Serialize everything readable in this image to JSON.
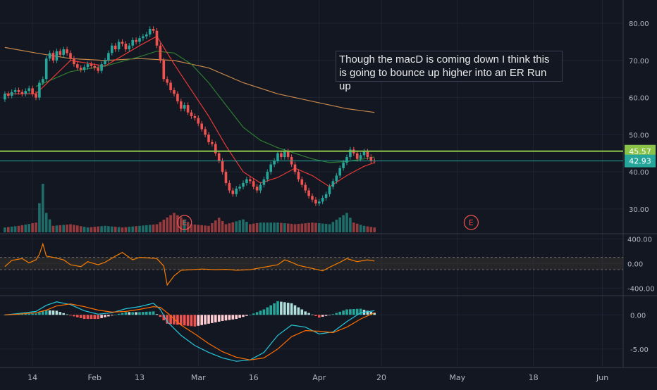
{
  "note": "Though the macD is coming down I think this is going to bounce up higher into an ER Run up",
  "colors": {
    "background": "#131722",
    "grid": "#1f2433",
    "up": "#26a69a",
    "down": "#ef5350",
    "ema_fast": "#e53935",
    "ema_mid": "#2e7d32",
    "sma_slow": "#c8884a",
    "hline": "#8bc34a",
    "price_line": "#26a69a",
    "cci": "#f57c00",
    "macd": "#26c6da",
    "signal": "#ff6d00",
    "axis_text": "#b2b5be"
  },
  "earnings_marker": "E",
  "chart_data": [
    {
      "type": "candlestick",
      "panel": "price",
      "ylim": [
        26,
        84
      ],
      "y_ticks": [
        "80.00",
        "70.00",
        "60.00",
        "50.00",
        "40.00",
        "30.00"
      ],
      "y_tick_values": [
        80,
        70,
        60,
        50,
        40,
        30
      ],
      "x_ticks": [
        "14",
        "Feb",
        "13",
        "Mar",
        "16",
        "Apr",
        "20",
        "May",
        "18",
        "Jun"
      ],
      "x_tick_days": [
        9,
        27,
        40,
        57,
        73,
        92,
        110,
        132,
        154,
        174
      ],
      "horizontal_line": 45.57,
      "last_price": 42.93,
      "price_labels": [
        "45.57",
        "42.93"
      ],
      "earnings_days": [
        53,
        136
      ],
      "candles": [
        [
          1,
          59.5,
          61
        ],
        [
          2,
          61,
          60.5
        ],
        [
          3,
          60.5,
          61.5
        ],
        [
          4,
          61.5,
          62
        ],
        [
          5,
          62,
          61.5
        ],
        [
          6,
          61.5,
          61
        ],
        [
          7,
          61,
          61.8
        ],
        [
          8,
          61.8,
          62.5
        ],
        [
          9,
          62.5,
          61
        ],
        [
          10,
          61,
          60
        ],
        [
          11,
          60,
          64
        ],
        [
          12,
          64,
          65
        ],
        [
          13,
          65,
          70.5
        ],
        [
          14,
          70.5,
          72
        ],
        [
          15,
          72,
          70
        ],
        [
          16,
          70,
          72.5
        ],
        [
          17,
          72.5,
          71.5
        ],
        [
          18,
          71.5,
          73
        ],
        [
          19,
          73,
          72
        ],
        [
          20,
          72,
          70.5
        ],
        [
          21,
          70.5,
          69
        ],
        [
          22,
          69,
          68
        ],
        [
          23,
          68,
          67.5
        ],
        [
          24,
          67.5,
          68.2
        ],
        [
          25,
          68.2,
          69
        ],
        [
          26,
          69,
          68.5
        ],
        [
          27,
          68.5,
          68
        ],
        [
          28,
          68,
          67.2
        ],
        [
          29,
          67.2,
          69
        ],
        [
          30,
          69,
          70
        ],
        [
          31,
          70,
          72
        ],
        [
          32,
          72,
          74
        ],
        [
          33,
          74,
          73
        ],
        [
          34,
          73,
          75
        ],
        [
          35,
          75,
          74.5
        ],
        [
          36,
          74.5,
          73
        ],
        [
          37,
          73,
          74
        ],
        [
          38,
          74,
          75.5
        ],
        [
          39,
          75.5,
          75
        ],
        [
          40,
          75,
          76
        ],
        [
          41,
          76,
          76.5
        ],
        [
          42,
          76.5,
          77
        ],
        [
          43,
          77,
          78.5
        ],
        [
          44,
          78.5,
          78
        ],
        [
          45,
          78,
          74
        ],
        [
          46,
          74,
          70
        ],
        [
          47,
          70,
          65
        ],
        [
          48,
          65,
          64
        ],
        [
          49,
          64,
          62
        ],
        [
          50,
          62,
          61
        ],
        [
          51,
          61,
          59
        ],
        [
          52,
          59,
          57
        ],
        [
          53,
          57,
          58
        ],
        [
          54,
          58,
          56
        ],
        [
          55,
          56,
          55
        ],
        [
          56,
          55,
          54.5
        ],
        [
          57,
          54.5,
          53
        ],
        [
          58,
          53,
          51.5
        ],
        [
          59,
          51.5,
          50
        ],
        [
          60,
          50,
          48
        ],
        [
          61,
          48,
          47.5
        ],
        [
          62,
          47.5,
          45
        ],
        [
          63,
          45,
          43
        ],
        [
          64,
          43,
          40
        ],
        [
          65,
          40,
          37
        ],
        [
          66,
          37,
          35
        ],
        [
          67,
          35,
          34
        ],
        [
          68,
          34,
          35.5
        ],
        [
          69,
          35.5,
          36
        ],
        [
          70,
          36,
          37
        ],
        [
          71,
          37,
          38
        ],
        [
          72,
          38,
          37.5
        ],
        [
          73,
          37.5,
          36
        ],
        [
          74,
          36,
          35
        ],
        [
          75,
          35,
          36.5
        ],
        [
          76,
          36.5,
          38
        ],
        [
          77,
          38,
          40
        ],
        [
          78,
          40,
          42
        ],
        [
          79,
          42,
          43
        ],
        [
          80,
          43,
          45
        ],
        [
          81,
          45,
          44
        ],
        [
          82,
          44,
          45.5
        ],
        [
          83,
          45.5,
          44
        ],
        [
          84,
          44,
          42
        ],
        [
          85,
          42,
          40
        ],
        [
          86,
          40,
          38
        ],
        [
          87,
          38,
          36.5
        ],
        [
          88,
          36.5,
          35
        ],
        [
          89,
          35,
          33.5
        ],
        [
          90,
          33.5,
          32.5
        ],
        [
          91,
          32.5,
          31.5
        ],
        [
          92,
          31.5,
          32
        ],
        [
          93,
          32,
          33
        ],
        [
          94,
          33,
          34
        ],
        [
          95,
          34,
          36
        ],
        [
          96,
          36,
          37.5
        ],
        [
          97,
          37.5,
          39
        ],
        [
          98,
          39,
          41
        ],
        [
          99,
          41,
          42.5
        ],
        [
          100,
          42.5,
          44
        ],
        [
          101,
          44,
          46
        ],
        [
          102,
          46,
          45
        ],
        [
          103,
          45,
          43.5
        ],
        [
          104,
          43.5,
          44.5
        ],
        [
          105,
          44.5,
          45.5
        ],
        [
          106,
          45.5,
          44
        ],
        [
          107,
          44,
          43
        ],
        [
          108,
          43,
          42.93
        ]
      ],
      "ema_fast": [
        [
          1,
          61
        ],
        [
          10,
          61
        ],
        [
          20,
          70
        ],
        [
          30,
          68.5
        ],
        [
          40,
          74
        ],
        [
          45,
          76.5
        ],
        [
          50,
          69
        ],
        [
          55,
          62
        ],
        [
          60,
          55
        ],
        [
          65,
          47
        ],
        [
          70,
          40
        ],
        [
          75,
          37
        ],
        [
          80,
          38.5
        ],
        [
          85,
          41
        ],
        [
          90,
          39
        ],
        [
          95,
          36
        ],
        [
          100,
          39
        ],
        [
          105,
          41.5
        ],
        [
          108,
          42.5
        ]
      ],
      "ema_mid": [
        [
          10,
          63
        ],
        [
          20,
          67
        ],
        [
          30,
          68.5
        ],
        [
          40,
          71
        ],
        [
          45,
          72.5
        ],
        [
          50,
          72
        ],
        [
          55,
          69
        ],
        [
          60,
          64
        ],
        [
          65,
          58
        ],
        [
          70,
          52
        ],
        [
          75,
          48.5
        ],
        [
          80,
          46.5
        ],
        [
          85,
          45
        ],
        [
          90,
          43.5
        ],
        [
          95,
          42.5
        ],
        [
          100,
          42.8
        ],
        [
          105,
          43.5
        ],
        [
          108,
          44
        ]
      ],
      "sma_slow": [
        [
          1,
          73.5
        ],
        [
          10,
          72
        ],
        [
          20,
          70.5
        ],
        [
          30,
          70
        ],
        [
          40,
          70.5
        ],
        [
          50,
          70
        ],
        [
          60,
          68
        ],
        [
          70,
          64
        ],
        [
          80,
          61
        ],
        [
          90,
          59
        ],
        [
          100,
          57
        ],
        [
          108,
          56
        ]
      ],
      "volume": [
        [
          1,
          3
        ],
        [
          5,
          4
        ],
        [
          10,
          6
        ],
        [
          12,
          30
        ],
        [
          13,
          12
        ],
        [
          14,
          8
        ],
        [
          15,
          4
        ],
        [
          20,
          5
        ],
        [
          25,
          3
        ],
        [
          30,
          4
        ],
        [
          35,
          3
        ],
        [
          40,
          4
        ],
        [
          45,
          5
        ],
        [
          50,
          12
        ],
        [
          55,
          5
        ],
        [
          60,
          4
        ],
        [
          63,
          9
        ],
        [
          65,
          5
        ],
        [
          70,
          8
        ],
        [
          72,
          5
        ],
        [
          75,
          6
        ],
        [
          80,
          6
        ],
        [
          85,
          5
        ],
        [
          90,
          6
        ],
        [
          95,
          5
        ],
        [
          100,
          12
        ],
        [
          102,
          6
        ],
        [
          105,
          4
        ],
        [
          108,
          3
        ]
      ]
    },
    {
      "type": "line",
      "panel": "oscillator",
      "ylim": [
        -500,
        450
      ],
      "y_ticks": [
        "400.00",
        "0.00",
        "-400.00"
      ],
      "y_tick_values": [
        400,
        0,
        -400
      ],
      "band": [
        100,
        -100
      ],
      "series": [
        {
          "values": [
            [
              1,
              -50
            ],
            [
              3,
              50
            ],
            [
              6,
              80
            ],
            [
              8,
              10
            ],
            [
              10,
              60
            ],
            [
              11,
              150
            ],
            [
              12,
              320
            ],
            [
              13,
              120
            ],
            [
              15,
              100
            ],
            [
              18,
              60
            ],
            [
              20,
              -20
            ],
            [
              23,
              -50
            ],
            [
              25,
              30
            ],
            [
              28,
              -20
            ],
            [
              30,
              20
            ],
            [
              33,
              120
            ],
            [
              35,
              180
            ],
            [
              38,
              60
            ],
            [
              40,
              100
            ],
            [
              43,
              90
            ],
            [
              45,
              80
            ],
            [
              47,
              -40
            ],
            [
              48,
              -350
            ],
            [
              50,
              -200
            ],
            [
              52,
              -110
            ],
            [
              55,
              -100
            ],
            [
              58,
              -90
            ],
            [
              62,
              -100
            ],
            [
              65,
              -95
            ],
            [
              68,
              -110
            ],
            [
              72,
              -100
            ],
            [
              76,
              -60
            ],
            [
              80,
              -20
            ],
            [
              82,
              60
            ],
            [
              84,
              20
            ],
            [
              86,
              -30
            ],
            [
              90,
              -80
            ],
            [
              93,
              -120
            ],
            [
              95,
              -60
            ],
            [
              98,
              20
            ],
            [
              100,
              80
            ],
            [
              103,
              30
            ],
            [
              106,
              60
            ],
            [
              108,
              40
            ]
          ]
        }
      ]
    },
    {
      "type": "macd",
      "panel": "macd",
      "ylim": [
        -7.5,
        2.5
      ],
      "y_ticks": [
        "0.00",
        "-5.00"
      ],
      "y_tick_values": [
        0,
        -5
      ],
      "macd": [
        [
          1,
          0
        ],
        [
          5,
          0.2
        ],
        [
          10,
          0.5
        ],
        [
          13,
          1.4
        ],
        [
          16,
          1.9
        ],
        [
          20,
          1.5
        ],
        [
          24,
          0.6
        ],
        [
          28,
          0.1
        ],
        [
          32,
          0.3
        ],
        [
          36,
          0.9
        ],
        [
          40,
          1.2
        ],
        [
          44,
          1.7
        ],
        [
          46,
          0.8
        ],
        [
          48,
          -1
        ],
        [
          52,
          -3
        ],
        [
          56,
          -4.5
        ],
        [
          60,
          -5.5
        ],
        [
          64,
          -6.3
        ],
        [
          68,
          -6.8
        ],
        [
          72,
          -6.6
        ],
        [
          76,
          -5.5
        ],
        [
          80,
          -3
        ],
        [
          84,
          -1.5
        ],
        [
          88,
          -1.8
        ],
        [
          92,
          -2.8
        ],
        [
          96,
          -2.5
        ],
        [
          100,
          -1
        ],
        [
          104,
          0.3
        ],
        [
          108,
          0.6
        ]
      ],
      "signal": [
        [
          1,
          0
        ],
        [
          5,
          0.1
        ],
        [
          10,
          0.3
        ],
        [
          13,
          0.7
        ],
        [
          16,
          1.3
        ],
        [
          20,
          1.6
        ],
        [
          24,
          1.2
        ],
        [
          28,
          0.7
        ],
        [
          32,
          0.4
        ],
        [
          36,
          0.5
        ],
        [
          40,
          0.8
        ],
        [
          44,
          1.2
        ],
        [
          46,
          1.1
        ],
        [
          48,
          0.3
        ],
        [
          52,
          -1.5
        ],
        [
          56,
          -2.8
        ],
        [
          60,
          -4.2
        ],
        [
          64,
          -5.4
        ],
        [
          68,
          -6.2
        ],
        [
          72,
          -6.6
        ],
        [
          76,
          -6.3
        ],
        [
          80,
          -5
        ],
        [
          84,
          -3.2
        ],
        [
          88,
          -2.3
        ],
        [
          92,
          -2.4
        ],
        [
          96,
          -2.6
        ],
        [
          100,
          -1.8
        ],
        [
          104,
          -0.6
        ],
        [
          108,
          0.3
        ]
      ]
    }
  ]
}
